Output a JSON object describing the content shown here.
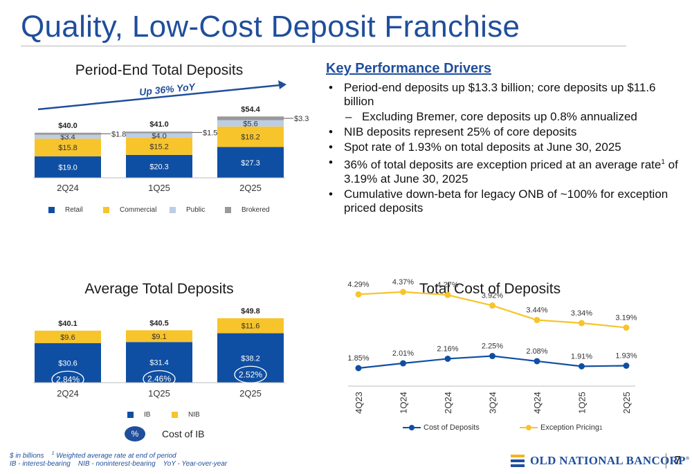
{
  "page": {
    "title": "Quality, Low-Cost Deposit Franchise",
    "page_number": "7"
  },
  "kpd": {
    "heading": "Key Performance Drivers",
    "bullets": [
      {
        "level": 1,
        "text": "Period-end deposits up $13.3 billion; core deposits up $11.6 billion"
      },
      {
        "level": 2,
        "text": "Excluding Bremer, core deposits up 0.8% annualized"
      },
      {
        "level": 1,
        "text": "NIB deposits represent 25% of core deposits"
      },
      {
        "level": 1,
        "text": "Spot rate of 1.93% on total deposits at June 30, 2025"
      },
      {
        "level": 1,
        "text_before_sup": "36% of total deposits are exception priced at an average rate",
        "sup": "1",
        "text_after_sup": " of 3.19% at June 30, 2025"
      },
      {
        "level": 1,
        "text": "Cumulative down-beta for legacy ONB of ~100% for exception priced deposits"
      }
    ]
  },
  "colors": {
    "navy": "#0f4fa3",
    "gold": "#f7c42b",
    "light_blue": "#bccde6",
    "gray": "#999999",
    "title_blue": "#1f4e9c"
  },
  "chart_data": [
    {
      "id": "period_end",
      "type": "bar",
      "stacked": true,
      "title": "Period-End Total Deposits",
      "categories": [
        "2Q24",
        "1Q25",
        "2Q25"
      ],
      "series": [
        {
          "name": "Retail",
          "values": [
            19.0,
            20.3,
            27.3
          ],
          "labels": [
            "$19.0",
            "$20.3",
            "$27.3"
          ],
          "color": "#0f4fa3",
          "label_color": "#ffffff"
        },
        {
          "name": "Commercial",
          "values": [
            15.8,
            15.2,
            18.2
          ],
          "labels": [
            "$15.8",
            "$15.2",
            "$18.2"
          ],
          "color": "#f7c42b",
          "label_color": "#333333"
        },
        {
          "name": "Public",
          "values": [
            3.4,
            4.0,
            5.6
          ],
          "labels": [
            "$3.4",
            "$4.0",
            "$5.6"
          ],
          "color": "#bccde6",
          "label_color": "#333333"
        },
        {
          "name": "Brokered",
          "values": [
            1.8,
            1.5,
            3.3
          ],
          "labels": [
            "$1.8",
            "$1.5",
            "$3.3"
          ],
          "color": "#999999",
          "label_color": "#333333"
        }
      ],
      "totals": [
        "$40.0",
        "$41.0",
        "$54.4"
      ],
      "annotation": "Up 36% YoY",
      "legend": "bottom"
    },
    {
      "id": "average",
      "type": "bar",
      "stacked": true,
      "title": "Average Total Deposits",
      "categories": [
        "2Q24",
        "1Q25",
        "2Q25"
      ],
      "series": [
        {
          "name": "IB",
          "values": [
            30.6,
            31.4,
            38.2
          ],
          "labels": [
            "$30.6",
            "$31.4",
            "$38.2"
          ],
          "color": "#0f4fa3",
          "label_color": "#ffffff"
        },
        {
          "name": "NIB",
          "values": [
            9.6,
            9.1,
            11.6
          ],
          "labels": [
            "$9.6",
            "$9.1",
            "$11.6"
          ],
          "color": "#f7c42b",
          "label_color": "#333333"
        }
      ],
      "totals": [
        "$40.1",
        "$40.5",
        "$49.8"
      ],
      "cost_of_ib": [
        "2.84%",
        "2.46%",
        "2.52%"
      ],
      "legend": "bottom"
    },
    {
      "id": "cost",
      "type": "line",
      "title": "Total Cost of Deposits",
      "categories": [
        "4Q23",
        "1Q24",
        "2Q24",
        "3Q24",
        "4Q24",
        "1Q25",
        "2Q25"
      ],
      "series": [
        {
          "name": "Cost of Deposits",
          "values": [
            1.85,
            2.01,
            2.16,
            2.25,
            2.08,
            1.91,
            1.93
          ],
          "labels": [
            "1.85%",
            "2.01%",
            "2.16%",
            "2.25%",
            "2.08%",
            "1.91%",
            "1.93%"
          ],
          "color": "#0f4fa3"
        },
        {
          "name": "Exception Pricing",
          "name_sup": "1",
          "values": [
            4.29,
            4.37,
            4.27,
            3.92,
            3.44,
            3.34,
            3.19
          ],
          "labels": [
            "4.29%",
            "4.37%",
            "4.27%",
            "3.92%",
            "3.44%",
            "3.34%",
            "3.19%"
          ],
          "color": "#f7c42b"
        }
      ],
      "legend": "bottom"
    }
  ],
  "key": {
    "oval_text": "%",
    "label": "Cost of IB"
  },
  "footnotes": {
    "line1_a": "$ in billions",
    "line1_sup": "1",
    "line1_b": "Weighted average rate at end of period",
    "line2": "IB - interest-bearing    NIB - noninterest-bearing    YoY - Year-over-year"
  },
  "logo": {
    "text": "OLD NATIONAL BANCORP",
    "mark": "registered-mark"
  }
}
